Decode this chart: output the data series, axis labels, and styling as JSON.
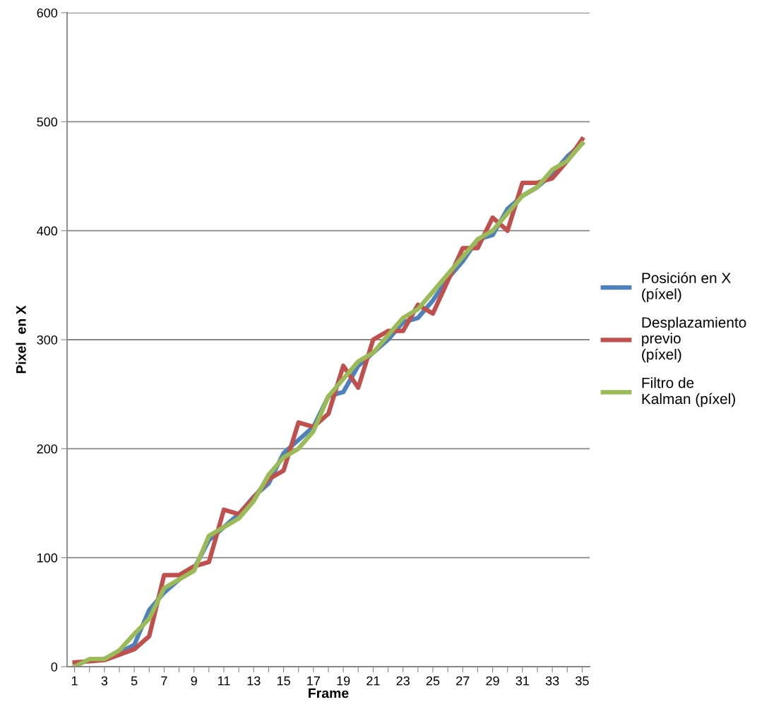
{
  "chart_data": {
    "type": "line",
    "xlabel": "Frame",
    "ylabel": "Pixel  en X",
    "categories": [
      "1",
      null,
      "3",
      null,
      "5",
      null,
      "7",
      null,
      "9",
      null,
      "11",
      null,
      "13",
      null,
      "15",
      null,
      "17",
      null,
      "19",
      null,
      "21",
      null,
      "23",
      null,
      "25",
      null,
      "27",
      null,
      "29",
      null,
      "31",
      null,
      "33",
      null,
      "35"
    ],
    "ylim": [
      0,
      600
    ],
    "yticks": [
      0,
      100,
      200,
      300,
      400,
      500,
      600
    ],
    "grid": "y",
    "legend": "right",
    "marker": "none",
    "line_style": "solid",
    "series": [
      {
        "name": "Posición en X\n(píxel)",
        "color": "#4f81bd",
        "values": [
          null,
          null,
          7,
          13,
          20,
          52,
          68,
          80,
          90,
          116,
          128,
          140,
          156,
          168,
          196,
          208,
          220,
          248,
          252,
          276,
          288,
          300,
          316,
          320,
          336,
          356,
          372,
          392,
          396,
          420,
          432,
          440,
          452,
          468,
          480
        ]
      },
      {
        "name": "Desplazamiento\nprevio\n(píxel)",
        "color": "#c0504d",
        "values": [
          4,
          5,
          6,
          11,
          16,
          28,
          84,
          84,
          92,
          96,
          144,
          140,
          155,
          172,
          180,
          224,
          220,
          232,
          276,
          256,
          300,
          308,
          308,
          332,
          324,
          354,
          384,
          384,
          412,
          400,
          444,
          444,
          448,
          464,
          484
        ]
      },
      {
        "name": "Filtro de\nKalman (píxel)",
        "color": "#9bbb59",
        "values": [
          0,
          7,
          7,
          15,
          30,
          44,
          72,
          80,
          88,
          120,
          128,
          136,
          152,
          176,
          192,
          200,
          216,
          248,
          264,
          280,
          288,
          304,
          320,
          328,
          344,
          360,
          376,
          392,
          400,
          416,
          432,
          440,
          456,
          464,
          480
        ]
      }
    ]
  }
}
